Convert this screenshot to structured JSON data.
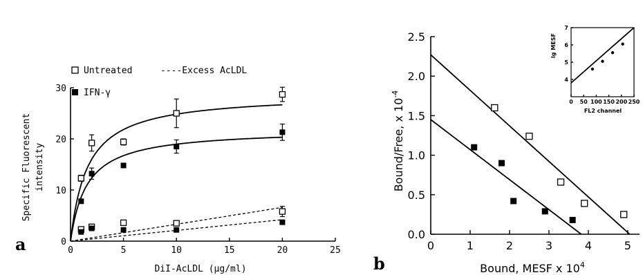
{
  "chart_data": [
    {
      "panel": "a",
      "type": "scatter",
      "xlabel": "DiI-AcLDL (μg/ml)",
      "ylabel": "Specific Fluorescent intensity",
      "xlim": [
        0,
        25
      ],
      "ylim": [
        0,
        30
      ],
      "xticks": [
        0,
        5,
        10,
        15,
        20,
        25
      ],
      "yticks": [
        0,
        10,
        20,
        30
      ],
      "legend": {
        "untreated": "Untreated",
        "excess": "----Excess AcLDL",
        "ifn": "IFN-γ"
      },
      "series": [
        {
          "name": "Untreated",
          "marker": "open-square",
          "x": [
            1,
            2,
            5,
            10,
            20
          ],
          "y": [
            12.3,
            19.2,
            19.4,
            25.0,
            28.7
          ],
          "err": [
            0.6,
            1.6,
            0.6,
            2.8,
            1.4
          ]
        },
        {
          "name": "IFN-γ",
          "marker": "filled-square",
          "x": [
            1,
            2,
            5,
            10,
            20
          ],
          "y": [
            7.8,
            13.2,
            14.8,
            18.5,
            21.3
          ],
          "err": [
            0.4,
            1.1,
            0.3,
            1.3,
            1.6
          ]
        },
        {
          "name": "Excess AcLDL (Untreated)",
          "marker": "open-square",
          "x": [
            1,
            2,
            5,
            10,
            20
          ],
          "y": [
            2.3,
            2.8,
            3.6,
            3.5,
            5.8
          ],
          "err": [
            0.5,
            0.4,
            0.5,
            0.3,
            1.0
          ]
        },
        {
          "name": "Excess AcLDL (IFN-γ)",
          "marker": "filled-square",
          "x": [
            1,
            2,
            5,
            10,
            20
          ],
          "y": [
            1.8,
            2.5,
            2.2,
            2.2,
            3.7
          ],
          "err": [
            0.3,
            0.3,
            0.4,
            0.3,
            0.5
          ]
        }
      ],
      "fits": [
        {
          "shape": "hyperbolic",
          "bmax": 28.8,
          "kd": 1.6
        },
        {
          "shape": "hyperbolic",
          "bmax": 21.9,
          "kd": 1.55
        },
        {
          "shape": "linear",
          "slope": 0.33,
          "style": "dashed"
        },
        {
          "shape": "linear",
          "slope": 0.21,
          "style": "dashed"
        }
      ]
    },
    {
      "panel": "b",
      "type": "scatter",
      "xlabel": "Bound, MESF x 10",
      "xlabel_exp": "4",
      "ylabel": "Bound/Free, x 10",
      "ylabel_exp": "-4",
      "xlim": [
        0,
        5.3
      ],
      "ylim": [
        0,
        2.5
      ],
      "xticks": [
        0,
        1,
        2,
        3,
        4,
        5
      ],
      "yticks": [
        "0.0",
        "0.5",
        "1.0",
        "1.5",
        "2.0",
        "2.5"
      ],
      "series": [
        {
          "name": "Untreated",
          "marker": "open-square",
          "x": [
            1.62,
            2.5,
            3.3,
            3.9,
            4.9
          ],
          "y": [
            1.6,
            1.24,
            0.66,
            0.39,
            0.25
          ]
        },
        {
          "name": "IFN-γ",
          "marker": "filled-square",
          "x": [
            1.1,
            1.8,
            2.1,
            2.9,
            3.6
          ],
          "y": [
            1.1,
            0.9,
            0.42,
            0.29,
            0.18
          ]
        }
      ],
      "fits": [
        {
          "x0": 0,
          "y0": 2.27,
          "x1": 5.05,
          "y1": 0
        },
        {
          "x0": 0,
          "y0": 1.45,
          "x1": 3.82,
          "y1": 0
        }
      ],
      "inset": {
        "type": "line",
        "ylabel": "lg MESF",
        "xlabel": "FL2 channel",
        "xlim": [
          0,
          250
        ],
        "ylim": [
          3,
          7
        ],
        "xticks": [
          0,
          50,
          100,
          150,
          200,
          250
        ],
        "yticks": [
          4,
          5,
          6,
          7
        ],
        "x": [
          85,
          125,
          165,
          205
        ],
        "y": [
          4.6,
          5.05,
          5.55,
          6.05
        ],
        "fit": {
          "x0": 0,
          "y0": 3.8,
          "x1": 250,
          "y1": 7
        }
      }
    }
  ]
}
